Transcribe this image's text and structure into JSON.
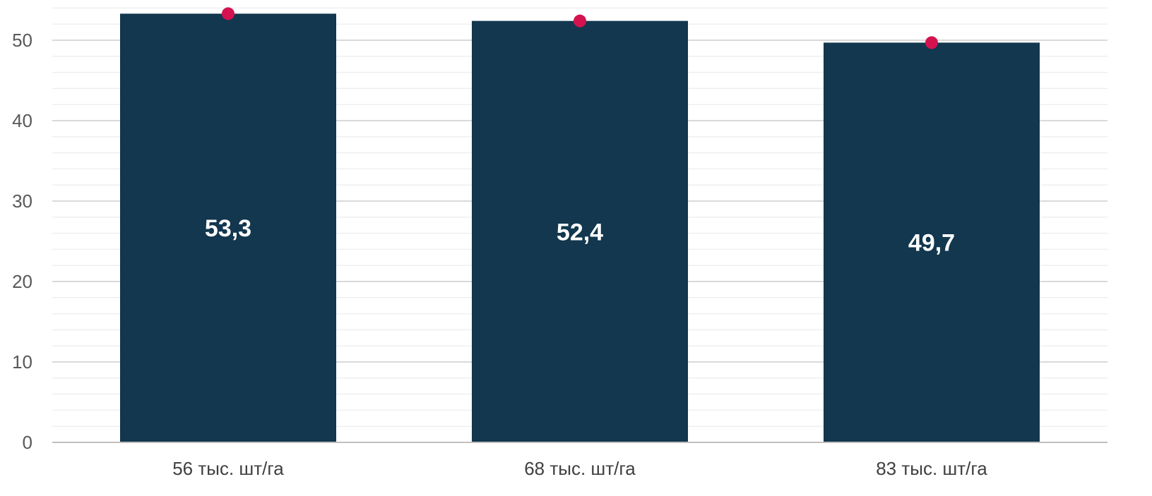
{
  "chart_data": {
    "type": "bar",
    "categories": [
      "56 тыс. шт/га",
      "68 тыс. шт/га",
      "83 тыс. шт/га"
    ],
    "values": [
      53.3,
      52.4,
      49.7
    ],
    "data_labels": [
      "53,3",
      "52,4",
      "49,7"
    ],
    "markers": [
      53.3,
      52.4,
      49.7
    ],
    "y_ticks": [
      0,
      10,
      20,
      30,
      40,
      50
    ],
    "y_tick_labels": [
      "0",
      "10",
      "20",
      "30",
      "40",
      "50"
    ],
    "ylim": [
      0,
      54
    ],
    "title": "",
    "xlabel": "",
    "ylabel": "",
    "grid": true,
    "minor_grid": true,
    "legend": "none",
    "colors": {
      "bar": "#12374f",
      "marker": "#d4124f",
      "major_grid": "#d9d9d9",
      "minor_grid": "#efefef",
      "axis": "#bfbfbf"
    }
  }
}
